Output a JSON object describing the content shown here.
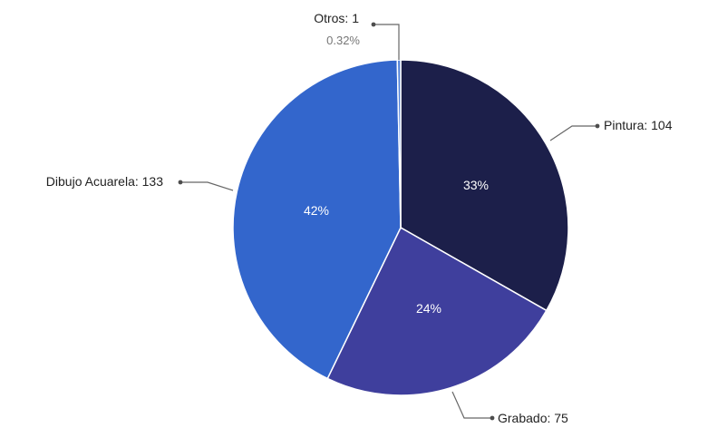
{
  "chart_data": {
    "type": "pie",
    "title": "",
    "series": [
      {
        "categories": [
          "Pintura",
          "Grabado",
          "Dibujo Acuarela",
          "Otros"
        ],
        "values": [
          104,
          75,
          133,
          1
        ]
      }
    ],
    "slices": [
      {
        "name": "Pintura",
        "value": 104,
        "percent_label": "33%",
        "callout": "Pintura: 104",
        "color": "#1c1f4a"
      },
      {
        "name": "Grabado",
        "value": 75,
        "percent_label": "24%",
        "callout": "Grabado: 75",
        "color": "#3f3f9d"
      },
      {
        "name": "Dibujo Acuarela",
        "value": 133,
        "percent_label": "42%",
        "callout": "Dibujo Acuarela: 133",
        "color": "#3366cc"
      },
      {
        "name": "Otros",
        "value": 1,
        "percent_label": "0.32%",
        "callout": "Otros: 1",
        "color": "#4f7fd7"
      }
    ]
  }
}
